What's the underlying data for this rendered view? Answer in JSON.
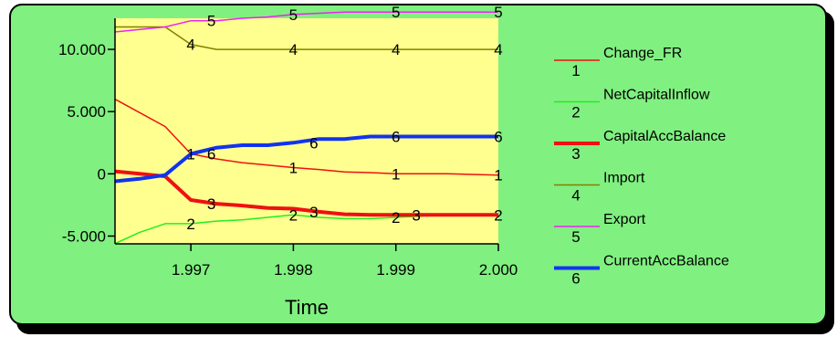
{
  "colors": {
    "frame_bg": "#80f080",
    "plot_bg": "#ffff90"
  },
  "chart_data": {
    "type": "line",
    "title": "",
    "xlabel": "Time",
    "ylabel": "",
    "xlim": [
      1996.26,
      2000.0
    ],
    "ylim": [
      -5625,
      12500
    ],
    "x_ticks": [
      1997,
      1998,
      1999,
      2000
    ],
    "x_tick_labels": [
      "1.997",
      "1.998",
      "1.999",
      "2.000"
    ],
    "y_ticks": [
      10000,
      5000,
      0,
      -5000
    ],
    "y_tick_labels": [
      "10.000",
      "5.000",
      "0",
      "-5.000"
    ],
    "grid": false,
    "legend_position": "right",
    "series": [
      {
        "name": "Change_FR",
        "marker": "1",
        "color": "#ee1111",
        "width": 1.5,
        "x": [
          1996.26,
          1996.75,
          1997.0,
          1997.25,
          1997.5,
          1997.75,
          1998.0,
          1998.25,
          1998.5,
          1998.75,
          1999.0,
          1999.5,
          2000.0
        ],
        "y": [
          6000,
          3800,
          1600,
          1200,
          900,
          700,
          500,
          350,
          150,
          100,
          0,
          0,
          -100
        ],
        "markers": [
          [
            1997.0,
            1600
          ],
          [
            1998.0,
            500
          ],
          [
            1999.0,
            0
          ],
          [
            2000.0,
            -100
          ]
        ]
      },
      {
        "name": "NetCapitalInflow",
        "marker": "2",
        "color": "#22ee22",
        "width": 1.5,
        "x": [
          1996.26,
          1996.5,
          1996.75,
          1997.0,
          1997.25,
          1997.5,
          1997.75,
          1998.0,
          1998.25,
          1998.5,
          1998.75,
          1999.0,
          1999.5,
          2000.0
        ],
        "y": [
          -5600,
          -4700,
          -4000,
          -4000,
          -3800,
          -3700,
          -3500,
          -3300,
          -3500,
          -3600,
          -3600,
          -3500,
          -3300,
          -3300
        ],
        "markers": [
          [
            1997.0,
            -4000
          ],
          [
            1998.0,
            -3300
          ],
          [
            1999.0,
            -3500
          ],
          [
            2000.0,
            -3300
          ]
        ]
      },
      {
        "name": "CapitalAccBalance",
        "marker": "3",
        "color": "#ee1111",
        "width": 4,
        "x": [
          1996.26,
          1996.5,
          1996.75,
          1997.0,
          1997.25,
          1997.5,
          1997.75,
          1998.0,
          1998.25,
          1998.5,
          1998.75,
          1999.0,
          1999.5,
          2000.0
        ],
        "y": [
          200,
          0,
          -200,
          -2100,
          -2400,
          -2550,
          -2750,
          -2800,
          -3050,
          -3250,
          -3300,
          -3300,
          -3300,
          -3300
        ],
        "markers": [
          [
            1997.2,
            -2400
          ],
          [
            1998.2,
            -3050
          ],
          [
            1999.2,
            -3300
          ]
        ]
      },
      {
        "name": "Import",
        "marker": "4",
        "color": "#808000",
        "width": 1.5,
        "x": [
          1996.26,
          1996.75,
          1997.0,
          1997.25,
          1997.5,
          1998.0,
          1998.5,
          1999.0,
          1999.5,
          2000.0
        ],
        "y": [
          11800,
          11800,
          10400,
          10000,
          10000,
          10000,
          10000,
          10000,
          10000,
          10000
        ],
        "markers": [
          [
            1997.0,
            10400
          ],
          [
            1998.0,
            10000
          ],
          [
            1999.0,
            10000
          ],
          [
            2000.0,
            10000
          ]
        ]
      },
      {
        "name": "Export",
        "marker": "5",
        "color": "#ee22ee",
        "width": 1.5,
        "x": [
          1996.26,
          1996.75,
          1997.0,
          1997.25,
          1997.5,
          1997.75,
          1998.0,
          1998.25,
          1998.5,
          1998.75,
          1999.0,
          1999.5,
          2000.0
        ],
        "y": [
          11400,
          11800,
          12300,
          12300,
          12500,
          12600,
          12800,
          12900,
          13000,
          13000,
          13000,
          13000,
          13000
        ],
        "markers": [
          [
            1997.2,
            12300
          ],
          [
            1998.0,
            12800
          ],
          [
            1999.0,
            13000
          ],
          [
            2000.0,
            13000
          ]
        ]
      },
      {
        "name": "CurrentAccBalance",
        "marker": "6",
        "color": "#1133ee",
        "width": 4,
        "x": [
          1996.26,
          1996.5,
          1996.75,
          1997.0,
          1997.25,
          1997.5,
          1997.75,
          1998.0,
          1998.25,
          1998.5,
          1998.75,
          1999.0,
          1999.5,
          2000.0
        ],
        "y": [
          -600,
          -400,
          -100,
          1600,
          2100,
          2300,
          2300,
          2500,
          2800,
          2800,
          3000,
          3000,
          3000,
          3000
        ],
        "markers": [
          [
            1997.2,
            1600
          ],
          [
            1998.2,
            2500
          ],
          [
            1999.0,
            3000
          ],
          [
            2000.0,
            3000
          ]
        ]
      }
    ]
  }
}
